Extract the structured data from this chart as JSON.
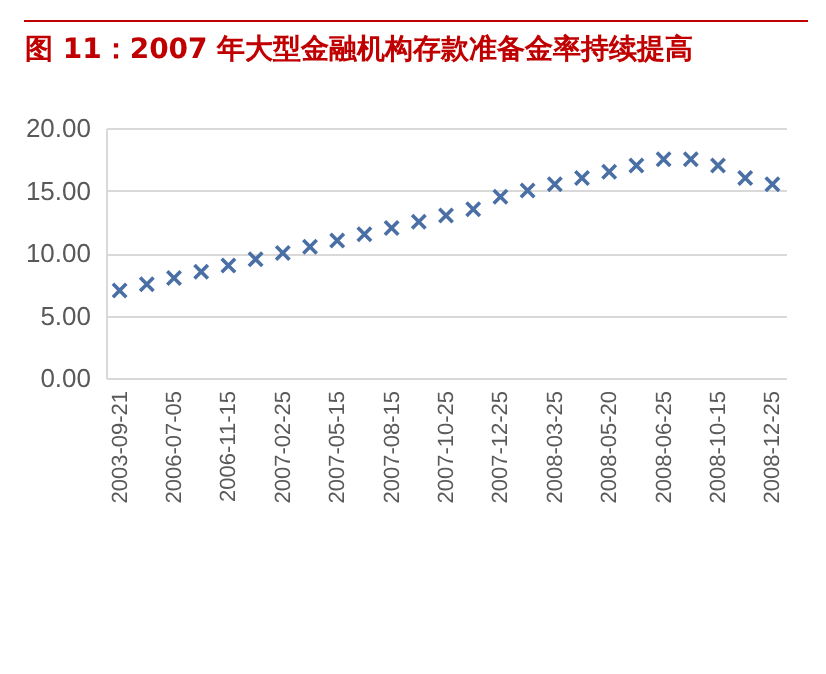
{
  "chart_data": {
    "type": "scatter",
    "title": "图 11：2007 年大型金融机构存款准备金率持续提高",
    "categories": [
      "2003-09-21",
      null,
      "2006-07-05",
      null,
      "2006-11-15",
      null,
      "2007-02-25",
      null,
      "2007-05-15",
      null,
      "2007-08-15",
      null,
      "2007-10-25",
      null,
      "2007-12-25",
      null,
      "2008-03-25",
      null,
      "2008-05-20",
      null,
      "2008-06-25",
      null,
      "2008-10-15",
      null,
      "2008-12-25"
    ],
    "series": [
      {
        "color": "#4a6fa5",
        "values": [
          7,
          7.5,
          8,
          8.5,
          9,
          9.5,
          10,
          10.5,
          11,
          11.5,
          12,
          12.5,
          13,
          13.5,
          14.5,
          15,
          15.5,
          16,
          16.5,
          17,
          17.5,
          17.5,
          17,
          16,
          15.5
        ]
      }
    ],
    "ylim": [
      0,
      20
    ],
    "yticks": [
      {
        "value": 0,
        "label": "0.00"
      },
      {
        "value": 5,
        "label": "5.00"
      },
      {
        "value": 10,
        "label": "10.00"
      },
      {
        "value": 15,
        "label": "15.00"
      },
      {
        "value": 20,
        "label": "20.00"
      }
    ],
    "grid": "y",
    "marker": "cross",
    "legend": false
  }
}
